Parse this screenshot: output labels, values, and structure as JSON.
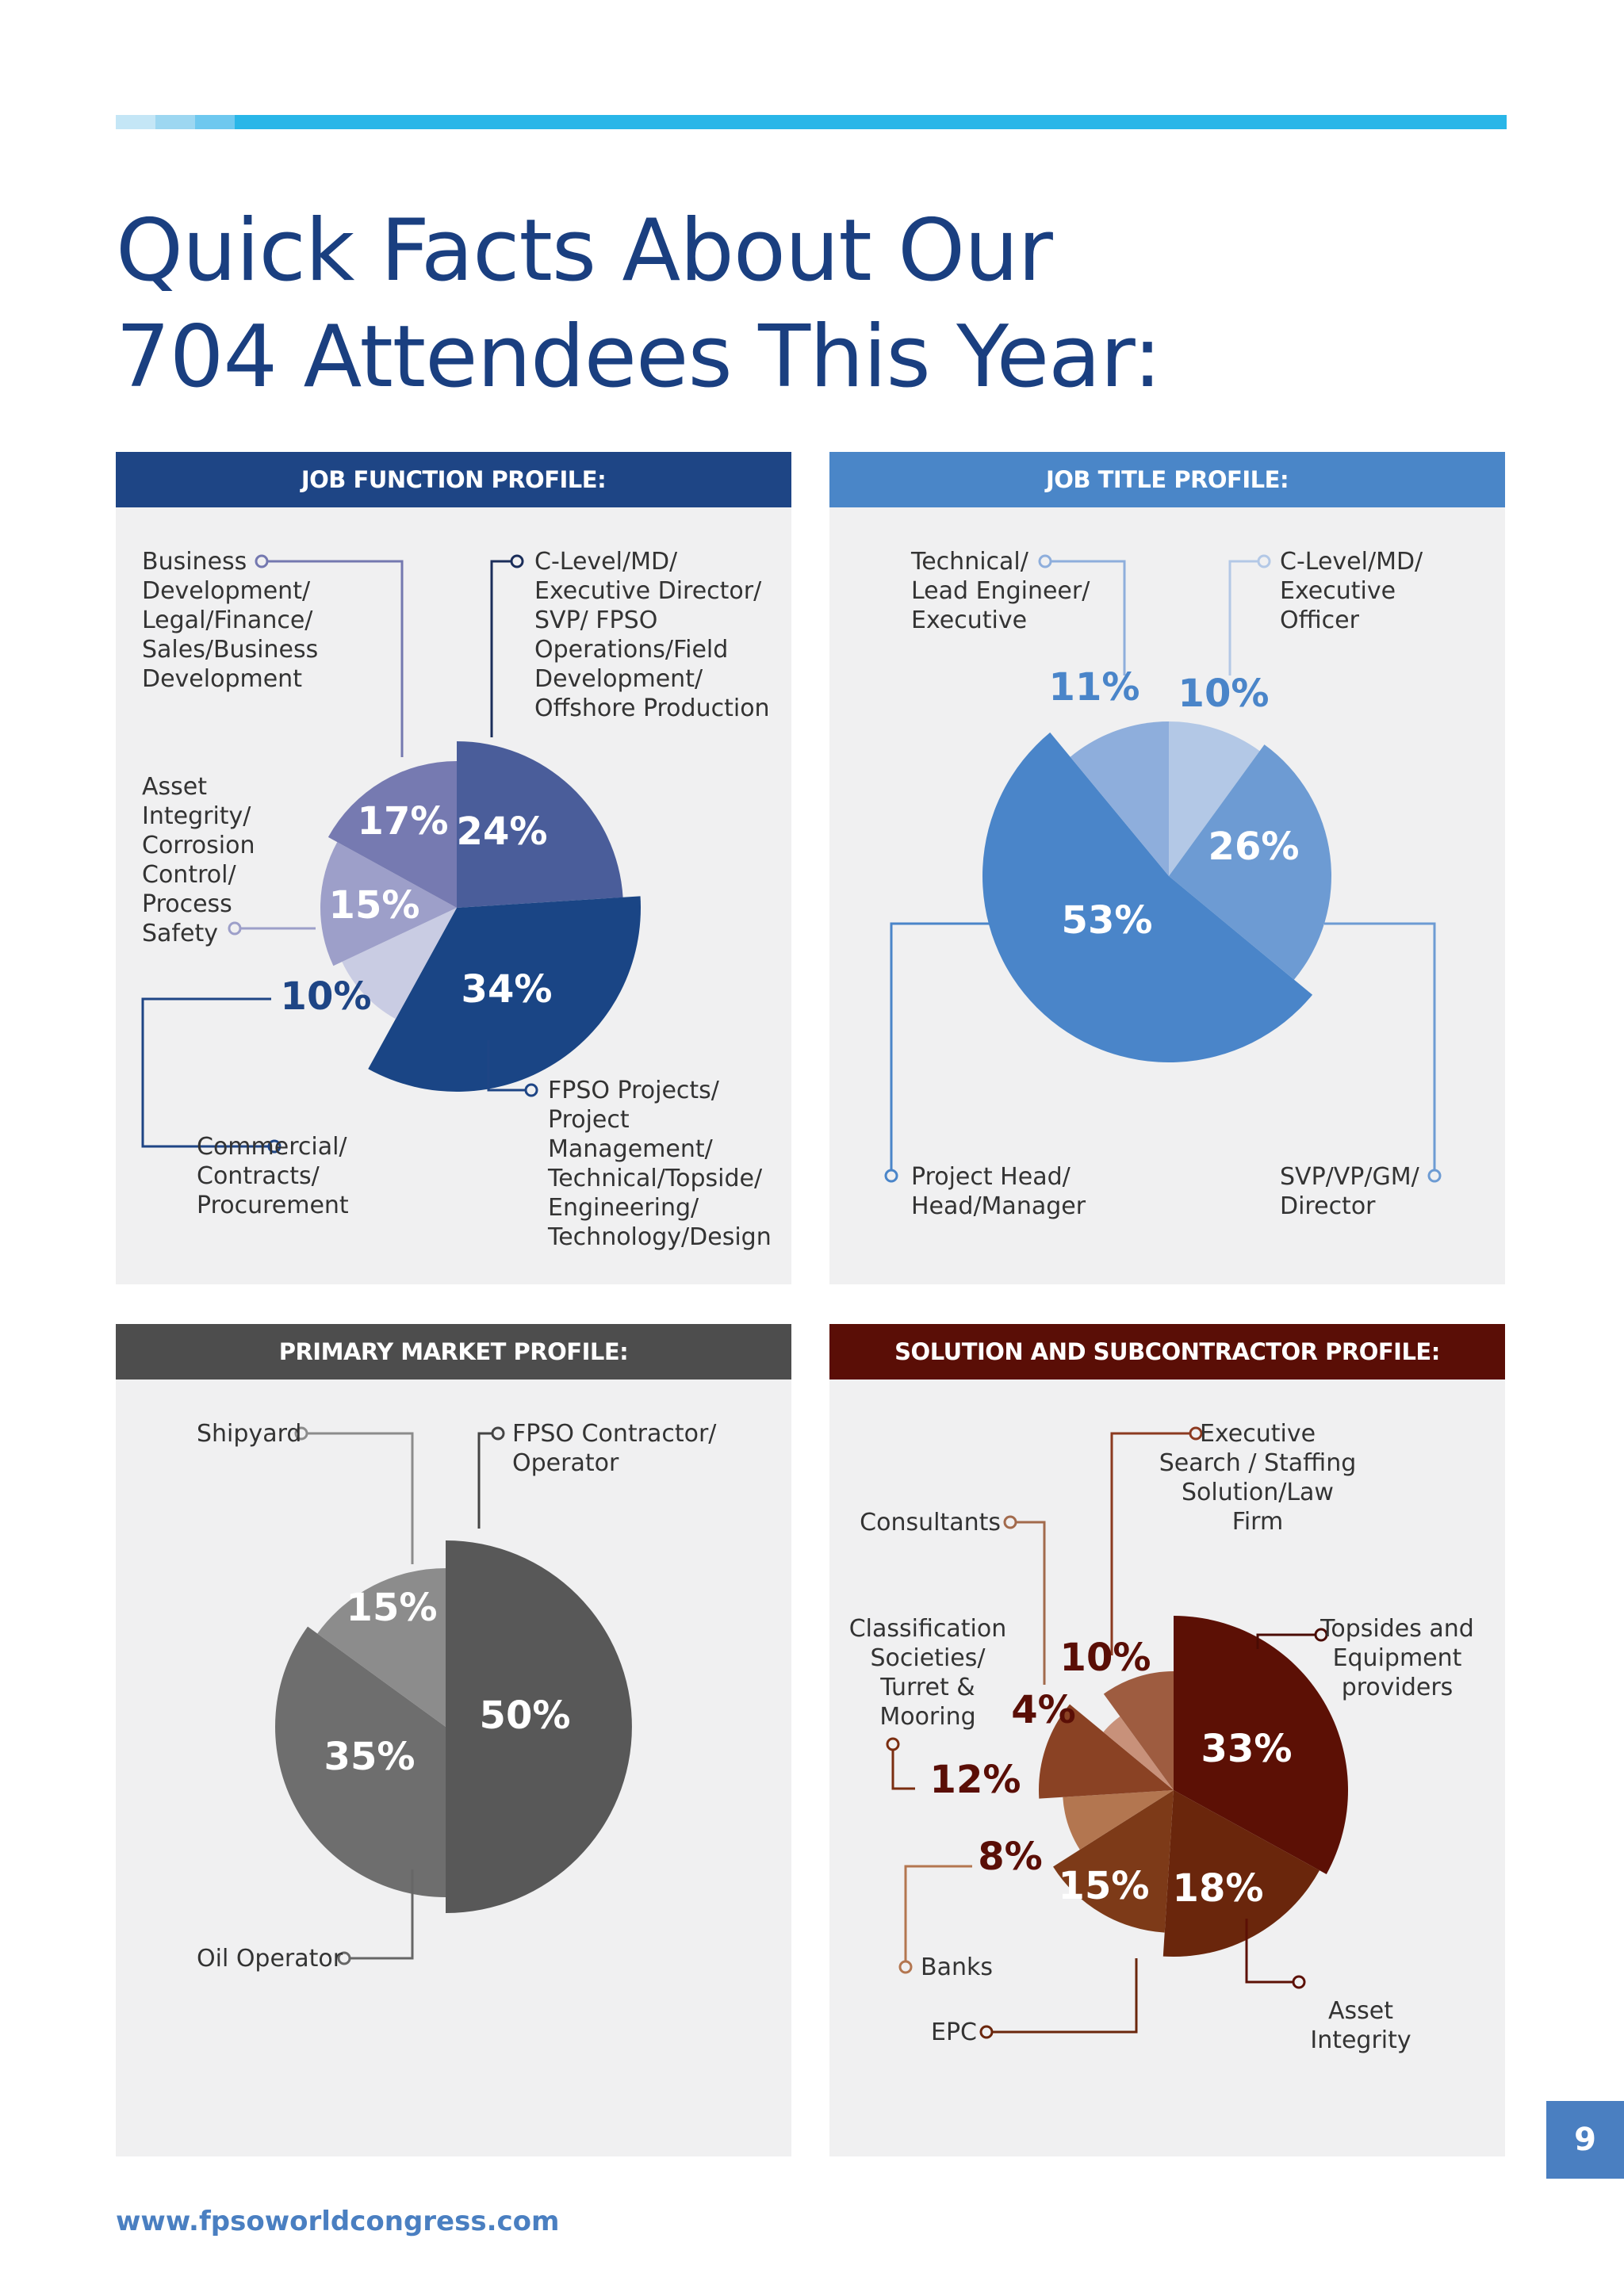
{
  "title_lines": [
    "Quick Facts About Our",
    "704 Attendees This Year:"
  ],
  "footer_url": "www.fpsoworldcongress.com",
  "page_number": "9",
  "colors": {
    "topbar": "#29b6e8",
    "title": "#1a3f80",
    "job_function_header": "#1e4585",
    "job_title_header": "#4a86c8",
    "primary_market_header": "#4d4d4d",
    "solution_header": "#5a0e06"
  },
  "chart_data": [
    {
      "type": "pie",
      "title": "JOB FUNCTION PROFILE:",
      "header_color": "#1e4585",
      "categories": [
        "C-Level/MD/ Executive Director/ SVP/ FPSO Operations/Field Development/ Offshore Production",
        "FPSO Projects/ Project Management/ Technical/Topside/ Engineering/ Technology/Design",
        "Commercial/ Contracts/ Procurement",
        "Asset Integrity/ Corrosion Control/ Process Safety",
        "Business Development/ Legal/Finance/ Sales/Business Development"
      ],
      "values": [
        24,
        34,
        10,
        15,
        17
      ],
      "labels": [
        "24%",
        "34%",
        "10%",
        "15%",
        "17%"
      ],
      "colors": [
        "#4a5d9a",
        "#1a4585",
        "#c9cce3",
        "#9d9fc9",
        "#767ab1"
      ]
    },
    {
      "type": "pie",
      "title": "JOB TITLE PROFILE:",
      "header_color": "#4a86c8",
      "categories": [
        "C-Level/MD/ Executive Officer",
        "SVP/VP/GM/ Director",
        "Project Head/ Head/Manager",
        "Technical/ Lead Engineer/ Executive"
      ],
      "values": [
        10,
        26,
        53,
        11
      ],
      "labels": [
        "10%",
        "26%",
        "53%",
        "11%"
      ],
      "colors": [
        "#b3c8e6",
        "#6d9bd3",
        "#4a85c9",
        "#8eaedc"
      ]
    },
    {
      "type": "pie",
      "title": "PRIMARY MARKET PROFILE:",
      "header_color": "#4d4d4d",
      "categories": [
        "FPSO Contractor/ Operator",
        "Oil Operator",
        "Shipyard"
      ],
      "values": [
        50,
        35,
        15
      ],
      "labels": [
        "50%",
        "35%",
        "15%"
      ],
      "colors": [
        "#585858",
        "#6e6e6e",
        "#8c8c8c"
      ]
    },
    {
      "type": "pie",
      "title": "SOLUTION AND SUBCONTRACTOR PROFILE:",
      "header_color": "#5a0e06",
      "categories": [
        "Topsides and Equipment providers",
        "Asset Integrity",
        "EPC",
        "Banks",
        "Classification Societies/ Turret & Mooring",
        "Consultants",
        "Executive Search / Staffing Solution/Law Firm"
      ],
      "values": [
        33,
        18,
        15,
        8,
        12,
        4,
        10
      ],
      "labels": [
        "33%",
        "18%",
        "15%",
        "8%",
        "12%",
        "4%",
        "10%"
      ],
      "colors": [
        "#5c1005",
        "#6a260c",
        "#7d3a18",
        "#b37650",
        "#8a4224",
        "#c8917a",
        "#9e5c40"
      ]
    }
  ]
}
